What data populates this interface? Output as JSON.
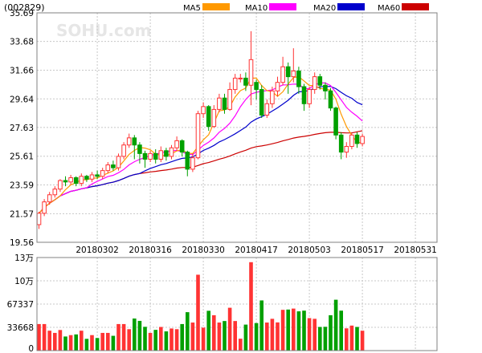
{
  "header": {
    "stock_code": "(002829)",
    "watermark": "SOHU.com"
  },
  "colors": {
    "up": "#ff3333",
    "down": "#00a000",
    "ma5": "#ff9900",
    "ma10": "#ff00ff",
    "ma20": "#0000cc",
    "ma60": "#cc0000",
    "grid": "#c8c8c8",
    "frame": "#808080"
  },
  "legend": [
    {
      "label": "MA5",
      "color": "#ff9900"
    },
    {
      "label": "MA10",
      "color": "#ff00ff"
    },
    {
      "label": "MA20",
      "color": "#0000cc"
    },
    {
      "label": "MA60",
      "color": "#cc0000"
    }
  ],
  "chart_data": [
    {
      "type": "candlestick",
      "ylim": [
        19.56,
        35.69
      ],
      "yticks": [
        35.69,
        33.68,
        31.66,
        29.64,
        27.63,
        25.61,
        23.59,
        21.57,
        19.56
      ],
      "xticks": [
        {
          "label": "20180302",
          "index": 11
        },
        {
          "label": "20180316",
          "index": 21
        },
        {
          "label": "20180330",
          "index": 31
        },
        {
          "label": "20180417",
          "index": 41
        },
        {
          "label": "20180503",
          "index": 51
        },
        {
          "label": "20180517",
          "index": 61
        },
        {
          "label": "20180531",
          "index": 71
        }
      ],
      "candles": [
        [
          20.8,
          21.6,
          20.5,
          21.7
        ],
        [
          21.6,
          22.4,
          21.4,
          22.6
        ],
        [
          22.4,
          22.9,
          22.2,
          23.1
        ],
        [
          22.9,
          23.3,
          22.7,
          23.5
        ],
        [
          23.3,
          23.9,
          23.1,
          24.0
        ],
        [
          23.9,
          23.8,
          23.5,
          24.2
        ],
        [
          23.8,
          24.1,
          23.6,
          24.3
        ],
        [
          24.1,
          23.7,
          23.5,
          24.2
        ],
        [
          23.7,
          24.2,
          23.5,
          24.4
        ],
        [
          24.2,
          24.0,
          23.8,
          24.3
        ],
        [
          24.0,
          24.3,
          23.8,
          24.5
        ],
        [
          24.3,
          24.2,
          24.0,
          24.6
        ],
        [
          24.2,
          24.6,
          24.0,
          24.8
        ],
        [
          24.6,
          25.0,
          24.4,
          25.2
        ],
        [
          25.0,
          24.8,
          24.6,
          25.3
        ],
        [
          24.8,
          25.6,
          24.6,
          25.8
        ],
        [
          25.6,
          26.4,
          25.4,
          26.6
        ],
        [
          26.4,
          26.9,
          26.2,
          27.2
        ],
        [
          26.9,
          26.4,
          25.4,
          27.1
        ],
        [
          26.4,
          25.8,
          25.1,
          26.6
        ],
        [
          25.8,
          25.4,
          24.8,
          26.0
        ],
        [
          25.4,
          25.8,
          25.2,
          26.0
        ],
        [
          25.8,
          25.4,
          25.1,
          26.1
        ],
        [
          25.4,
          26.0,
          25.2,
          26.3
        ],
        [
          26.0,
          25.6,
          25.3,
          26.2
        ],
        [
          25.6,
          26.2,
          25.4,
          26.4
        ],
        [
          26.2,
          26.7,
          26.0,
          27.0
        ],
        [
          26.7,
          25.9,
          25.6,
          26.8
        ],
        [
          25.9,
          24.7,
          24.2,
          26.0
        ],
        [
          24.7,
          25.5,
          24.5,
          25.8
        ],
        [
          25.5,
          28.6,
          25.4,
          28.8
        ],
        [
          28.6,
          29.1,
          28.3,
          29.4
        ],
        [
          29.1,
          27.7,
          27.4,
          29.2
        ],
        [
          27.7,
          28.9,
          27.6,
          29.2
        ],
        [
          28.9,
          29.7,
          28.7,
          30.0
        ],
        [
          29.7,
          28.9,
          28.6,
          30.0
        ],
        [
          28.9,
          30.3,
          28.8,
          30.8
        ],
        [
          30.3,
          31.1,
          30.0,
          31.4
        ],
        [
          31.1,
          31.1,
          30.8,
          31.4
        ],
        [
          31.1,
          30.6,
          30.2,
          31.5
        ],
        [
          30.6,
          32.4,
          29.2,
          34.4
        ],
        [
          30.8,
          30.3,
          29.6,
          31.0
        ],
        [
          30.3,
          28.5,
          28.3,
          30.6
        ],
        [
          28.5,
          29.3,
          28.3,
          29.6
        ],
        [
          29.3,
          30.2,
          29.0,
          30.5
        ],
        [
          30.2,
          30.8,
          29.8,
          31.2
        ],
        [
          30.8,
          31.9,
          30.6,
          32.6
        ],
        [
          31.9,
          31.2,
          30.0,
          32.2
        ],
        [
          31.2,
          31.6,
          30.8,
          33.2
        ],
        [
          31.6,
          30.5,
          30.0,
          31.9
        ],
        [
          30.5,
          29.3,
          28.8,
          30.7
        ],
        [
          29.3,
          30.3,
          29.0,
          30.5
        ],
        [
          30.3,
          31.2,
          30.0,
          31.5
        ],
        [
          31.2,
          30.6,
          30.3,
          31.4
        ],
        [
          30.6,
          30.2,
          29.6,
          30.8
        ],
        [
          30.2,
          29.0,
          28.8,
          30.4
        ],
        [
          29.0,
          27.1,
          26.8,
          29.1
        ],
        [
          27.1,
          25.9,
          25.4,
          27.3
        ],
        [
          25.9,
          26.3,
          25.5,
          26.6
        ],
        [
          26.3,
          27.1,
          26.1,
          27.2
        ],
        [
          27.1,
          26.5,
          26.2,
          27.3
        ],
        [
          26.5,
          27.0,
          26.3,
          27.2
        ]
      ],
      "volume": {
        "ylim": [
          0,
          134672
        ],
        "yticks": [
          {
            "label": "13万",
            "value": 134672
          },
          {
            "label": "10万",
            "value": 101004
          },
          {
            "label": "67337",
            "value": 67337
          },
          {
            "label": "33668",
            "value": 33668
          },
          {
            "label": "0",
            "value": 0
          }
        ]
      }
    }
  ]
}
